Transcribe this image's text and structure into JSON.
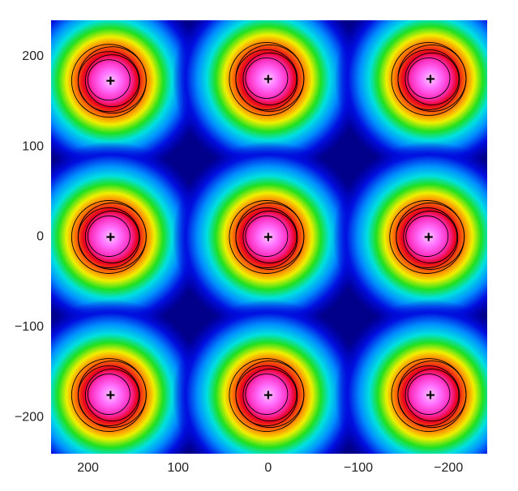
{
  "chart_data": {
    "type": "scatter",
    "x": [
      175,
      0,
      -180,
      175,
      0,
      -178,
      175,
      0,
      -180
    ],
    "y": [
      173,
      175,
      175,
      0,
      0,
      0,
      -175,
      -175,
      -175
    ],
    "color": "#000000",
    "xlim": [
      241,
      -243
    ],
    "ylim": [
      -240,
      240
    ],
    "xticks": [
      200,
      100,
      0,
      {
        "value": -100,
        "label": "−100"
      },
      {
        "value": -200,
        "label": "−200"
      }
    ],
    "yticks": [
      200,
      100,
      0,
      {
        "value": -100,
        "label": "−100"
      },
      {
        "value": -200,
        "label": "−200"
      }
    ],
    "grid": false
  }
}
